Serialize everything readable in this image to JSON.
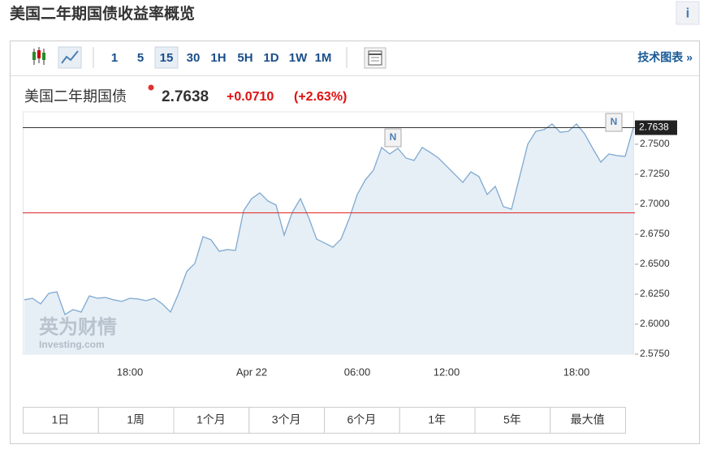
{
  "header": {
    "title": "美国二年期国债收益率概览",
    "info": "i"
  },
  "toolbar": {
    "intervals": [
      "1",
      "5",
      "15",
      "30",
      "1H",
      "5H",
      "1D",
      "1W",
      "1M"
    ],
    "selected": "15",
    "tech_link": "技术图表 »"
  },
  "quote": {
    "name": "美国二年期国债",
    "price": "2.7638",
    "change": "+0.0710",
    "change_pct": "(+2.63%)"
  },
  "chart_data": {
    "type": "line",
    "categories": [
      null,
      null,
      null,
      null,
      null,
      null,
      null,
      null,
      null,
      null,
      null,
      null,
      null,
      "18:00",
      null,
      null,
      null,
      null,
      null,
      null,
      null,
      null,
      null,
      null,
      null,
      null,
      null,
      null,
      "Apr 22",
      null,
      null,
      null,
      null,
      null,
      null,
      null,
      null,
      null,
      null,
      null,
      null,
      "06:00",
      null,
      null,
      null,
      null,
      null,
      null,
      null,
      null,
      null,
      null,
      "12:00",
      null,
      null,
      null,
      null,
      null,
      null,
      null,
      null,
      null,
      null,
      null,
      null,
      null,
      null,
      null,
      "18:00",
      null,
      null,
      null,
      null,
      null,
      null,
      null
    ],
    "series": [
      {
        "name": "美国二年期国债",
        "color": "#7fa9d0",
        "fill": "#e6eef6",
        "values": [
          2.6203,
          2.6216,
          2.6169,
          2.6257,
          2.627,
          2.6081,
          2.6122,
          2.6101,
          2.6236,
          2.6216,
          2.6223,
          2.6203,
          2.619,
          2.6216,
          2.621,
          2.6196,
          2.6216,
          2.6169,
          2.6101,
          2.6257,
          2.6439,
          2.6507,
          2.673,
          2.6703,
          2.6608,
          2.6622,
          2.6615,
          2.6946,
          2.7047,
          2.7095,
          2.7027,
          2.6993,
          2.6743,
          2.6932,
          2.7047,
          2.6892,
          2.6709,
          2.6676,
          2.6642,
          2.6709,
          2.6878,
          2.7081,
          2.7203,
          2.7284,
          2.7473,
          2.7419,
          2.7466,
          2.7385,
          2.7365,
          2.7473,
          2.7432,
          2.7385,
          2.7318,
          2.725,
          2.7182,
          2.727,
          2.723,
          2.7081,
          2.7149,
          2.698,
          2.6959,
          2.723,
          2.75,
          2.7608,
          2.7622,
          2.7669,
          2.76,
          2.7608,
          2.7669,
          2.7588,
          2.7466,
          2.7351,
          2.7419,
          2.7405,
          2.7399,
          2.7638
        ]
      }
    ],
    "ylim": [
      2.575,
      2.777
    ],
    "yticks": [
      {
        "value": 2.575,
        "label": "2.5750"
      },
      {
        "value": 2.6,
        "label": "2.6000"
      },
      {
        "value": 2.625,
        "label": "2.6250"
      },
      {
        "value": 2.65,
        "label": "2.6500"
      },
      {
        "value": 2.675,
        "label": "2.6750"
      },
      {
        "value": 2.7,
        "label": "2.7000"
      },
      {
        "value": 2.725,
        "label": "2.7250"
      },
      {
        "value": 2.75,
        "label": "2.7500"
      }
    ],
    "last_value": {
      "value": 2.7638,
      "label": "2.7638"
    },
    "previous_close": 2.6928,
    "annotations": [
      "N",
      "N"
    ],
    "watermark": [
      "英为财情",
      "Investing.com"
    ]
  },
  "periods": [
    "1日",
    "1周",
    "1个月",
    "3个月",
    "6个月",
    "1年",
    "5年",
    "最大值"
  ]
}
